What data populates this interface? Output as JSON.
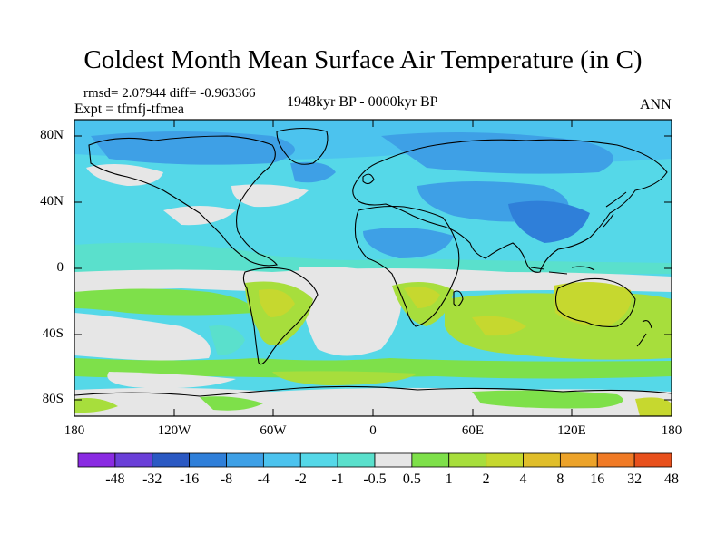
{
  "title": "Coldest Month Mean Surface Air Temperature (in C)",
  "stats_line": "rmsd= 2.07944 diff= -0.963366",
  "experiment": "Expt = tfmfj-tfmea",
  "period": "1948kyr BP - 0000kyr BP",
  "season": "ANN",
  "map": {
    "lat_labels": [
      "80N",
      "40N",
      "0",
      "40S",
      "80S"
    ],
    "lon_labels": [
      "180",
      "120W",
      "60W",
      "0",
      "60E",
      "120E",
      "180"
    ]
  },
  "colorbar": {
    "labels": [
      "-48",
      "-32",
      "-16",
      "-8",
      "-4",
      "-2",
      "-1",
      "-0.5",
      "0.5",
      "1",
      "2",
      "4",
      "8",
      "16",
      "32",
      "48"
    ],
    "colors": [
      "#8a2be2",
      "#6a3fd8",
      "#2b59c3",
      "#2f7fd9",
      "#3ea0e6",
      "#4cc3ee",
      "#55d8e8",
      "#5ae0cc",
      "#e6e6e6",
      "#7ee04a",
      "#a7de3c",
      "#c6d82f",
      "#e0be2a",
      "#eca32a",
      "#f07a25",
      "#e8501c"
    ]
  }
}
